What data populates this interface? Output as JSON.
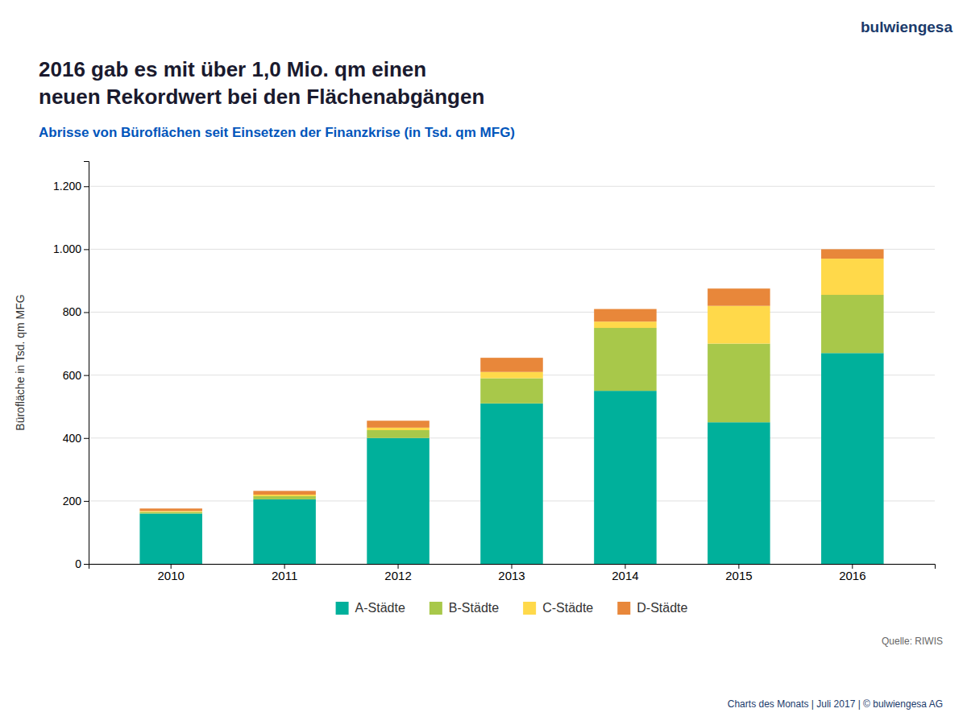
{
  "chart_data": {
    "type": "bar",
    "stacked": true,
    "title": [
      "2016 gab es mit über 1,0 Mio. qm einen",
      "neuen Rekordwert bei den Flächenabgängen"
    ],
    "subtitle": "Abrisse von Büroflächen seit Einsetzen der Finanzkrise (in Tsd. qm MFG)",
    "y_label": "Bürofläche in Tsd. qm MFG",
    "annotations": [
      "bulwiengesa",
      "Quelle: RIWIS",
      "Charts des Monats | Juli 2017 | © bulwiengesa AG"
    ],
    "categories": [
      "2010",
      "2011",
      "2012",
      "2013",
      "2014",
      "2015",
      "2016"
    ],
    "series": [
      {
        "name": "A-Städte",
        "color": "#00B09B",
        "values": [
          160,
          205,
          400,
          510,
          550,
          450,
          670
        ]
      },
      {
        "name": "B-Städte",
        "color": "#A8C84A",
        "values": [
          5,
          10,
          25,
          80,
          200,
          250,
          185
        ]
      },
      {
        "name": "C-Städte",
        "color": "#FFD94A",
        "values": [
          3,
          5,
          8,
          20,
          20,
          120,
          115
        ]
      },
      {
        "name": "D-Städte",
        "color": "#E8873A",
        "values": [
          8,
          12,
          22,
          45,
          40,
          55,
          30
        ]
      }
    ],
    "ylim": [
      0,
      1280
    ],
    "yticks": [
      0,
      200,
      400,
      600,
      800,
      {
        "value": 1000,
        "label": "1.000"
      },
      {
        "value": 1200,
        "label": "1.200"
      }
    ],
    "grid": true,
    "legend": "bottom"
  }
}
